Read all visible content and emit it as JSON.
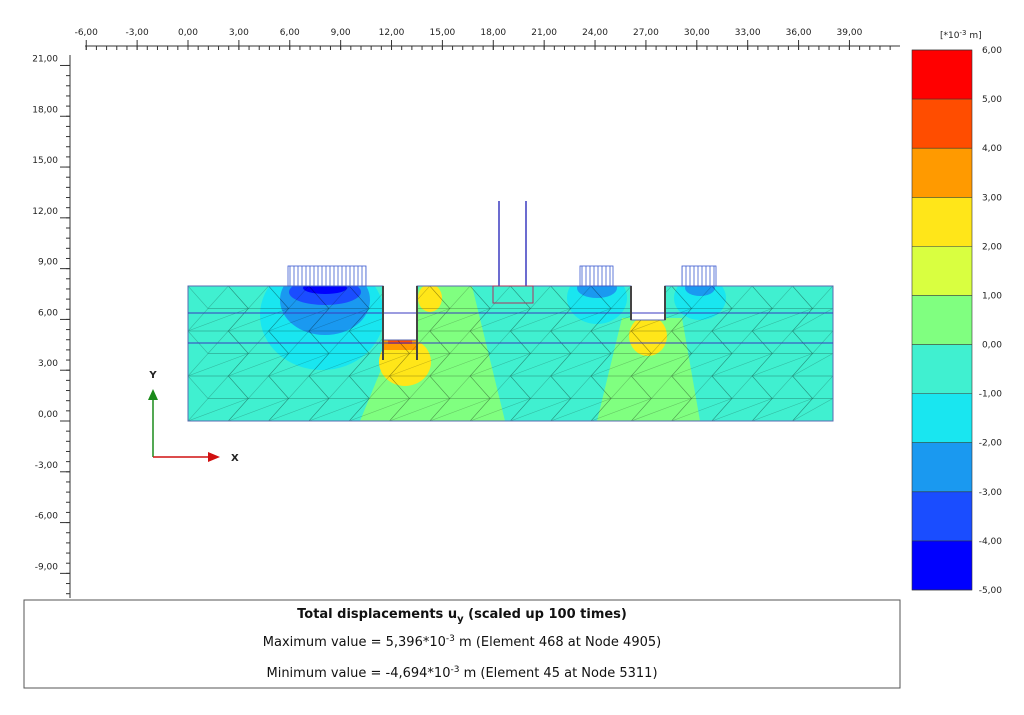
{
  "x_axis": {
    "ticks": [
      {
        "value": -6,
        "label": "-6,00"
      },
      {
        "value": -3,
        "label": "-3,00"
      },
      {
        "value": 0,
        "label": "0,00"
      },
      {
        "value": 3,
        "label": "3,00"
      },
      {
        "value": 6,
        "label": "6,00"
      },
      {
        "value": 9,
        "label": "9,00"
      },
      {
        "value": 12,
        "label": "12,00"
      },
      {
        "value": 15,
        "label": "15,00"
      },
      {
        "value": 18,
        "label": "18,00"
      },
      {
        "value": 21,
        "label": "21,00"
      },
      {
        "value": 24,
        "label": "24,00"
      },
      {
        "value": 27,
        "label": "27,00"
      },
      {
        "value": 30,
        "label": "30,00"
      },
      {
        "value": 33,
        "label": "33,00"
      },
      {
        "value": 36,
        "label": "36,00"
      },
      {
        "value": 39,
        "label": "39,00"
      }
    ]
  },
  "y_axis": {
    "ticks": [
      {
        "value": 21,
        "label": "21,00"
      },
      {
        "value": 18,
        "label": "18,00"
      },
      {
        "value": 15,
        "label": "15,00"
      },
      {
        "value": 12,
        "label": "12,00"
      },
      {
        "value": 9,
        "label": "9,00"
      },
      {
        "value": 6,
        "label": "6,00"
      },
      {
        "value": 3,
        "label": "3,00"
      },
      {
        "value": 0,
        "label": "0,00"
      },
      {
        "value": -3,
        "label": "-3,00"
      },
      {
        "value": -6,
        "label": "-6,00"
      },
      {
        "value": -9,
        "label": "-9,00"
      }
    ]
  },
  "axis_glyph": {
    "x": "X",
    "y": "Y"
  },
  "legend": {
    "unit_prefix": "[*10",
    "unit_exp": "-3",
    "unit_suffix": " m]",
    "ticks": [
      {
        "value": 6,
        "label": "6,00"
      },
      {
        "value": 5,
        "label": "5,00"
      },
      {
        "value": 4,
        "label": "4,00"
      },
      {
        "value": 3,
        "label": "3,00"
      },
      {
        "value": 2,
        "label": "2,00"
      },
      {
        "value": 1,
        "label": "1,00"
      },
      {
        "value": 0,
        "label": "0,00"
      },
      {
        "value": -1,
        "label": "-1,00"
      },
      {
        "value": -2,
        "label": "-2,00"
      },
      {
        "value": -3,
        "label": "-3,00"
      },
      {
        "value": -4,
        "label": "-4,00"
      },
      {
        "value": -5,
        "label": "-5,00"
      }
    ],
    "colors": [
      "#ff0000",
      "#ff4d00",
      "#ff9a00",
      "#ffe619",
      "#d9ff40",
      "#80ff80",
      "#40f0d0",
      "#19e6f0",
      "#1a99f0",
      "#1a4dff",
      "#0000ff"
    ]
  },
  "caption": {
    "title_main": "Total displacements u",
    "title_sub": "y",
    "title_rest": " (scaled up 100 times)",
    "max_main": "Maximum value = 5,396*10",
    "max_exp": "-3",
    "max_rest": " m (Element 468 at Node 4905)",
    "min_main": "Minimum value = -4,694*10",
    "min_exp": "-3",
    "min_rest": " m (Element 45 at Node 5311)"
  }
}
